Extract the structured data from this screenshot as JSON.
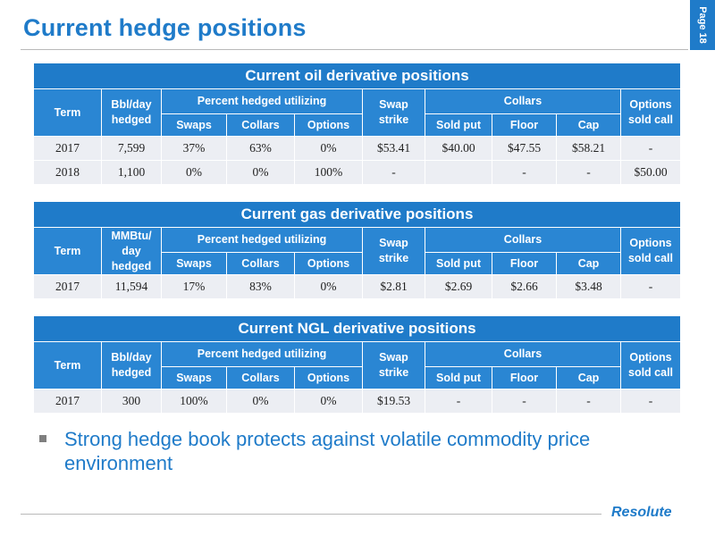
{
  "page": {
    "title": "Current hedge positions",
    "page_label": "Page 18",
    "bullet": "Strong hedge book protects against volatile commodity price environment",
    "logo_text": "Resolute"
  },
  "colors": {
    "accent": "#1f7bc9",
    "header_fill": "#2a86d3",
    "row_fill": "#eceef3"
  },
  "headers": {
    "term": "Term",
    "pct_group": "Percent hedged utilizing",
    "swaps": "Swaps",
    "collars_pct": "Collars",
    "options": "Options",
    "swap_strike": "Swap strike",
    "collars_group": "Collars",
    "sold_put": "Sold put",
    "floor": "Floor",
    "cap": "Cap",
    "options_sold_call": "Options sold call"
  },
  "tables": [
    {
      "caption": "Current oil derivative positions",
      "volume_header": "Bbl/day hedged",
      "rows": [
        {
          "term": "2017",
          "volume": "7,599",
          "swaps": "37%",
          "collars": "63%",
          "options": "0%",
          "swap_strike": "$53.41",
          "sold_put": "$40.00",
          "floor": "$47.55",
          "cap": "$58.21",
          "options_sold_call": "-"
        },
        {
          "term": "2018",
          "volume": "1,100",
          "swaps": "0%",
          "collars": "0%",
          "options": "100%",
          "swap_strike": "-",
          "sold_put": "",
          "floor": "-",
          "cap": "-",
          "options_sold_call": "$50.00"
        }
      ]
    },
    {
      "caption": "Current gas derivative positions",
      "volume_header": "MMBtu/ day hedged",
      "rows": [
        {
          "term": "2017",
          "volume": "11,594",
          "swaps": "17%",
          "collars": "83%",
          "options": "0%",
          "swap_strike": "$2.81",
          "sold_put": "$2.69",
          "floor": "$2.66",
          "cap": "$3.48",
          "options_sold_call": "-"
        }
      ]
    },
    {
      "caption": "Current NGL derivative positions",
      "volume_header": "Bbl/day hedged",
      "rows": [
        {
          "term": "2017",
          "volume": "300",
          "swaps": "100%",
          "collars": "0%",
          "options": "0%",
          "swap_strike": "$19.53",
          "sold_put": "-",
          "floor": "-",
          "cap": "-",
          "options_sold_call": "-"
        }
      ]
    }
  ]
}
